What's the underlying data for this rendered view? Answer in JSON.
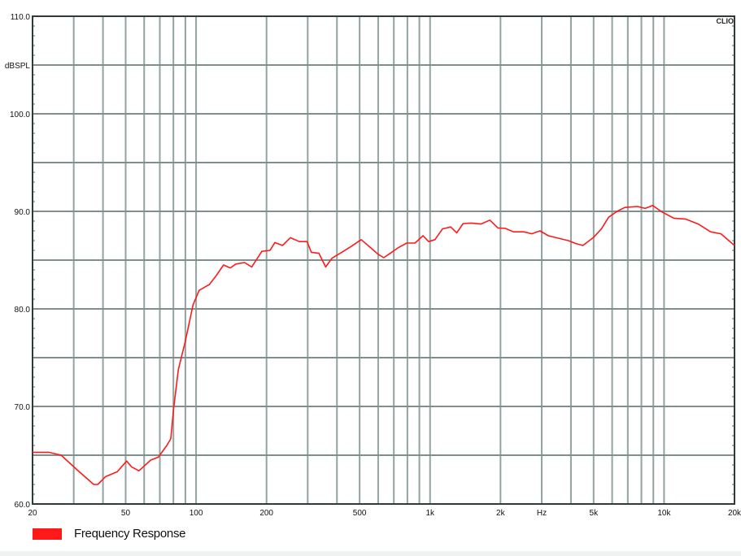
{
  "chart_data": {
    "type": "line",
    "title": "",
    "xlabel": "Hz",
    "ylabel": "dBSPL",
    "x_scale": "log",
    "xlim": [
      20,
      20000
    ],
    "ylim": [
      60,
      110
    ],
    "grid": true,
    "logo": "CLIO",
    "x_tick_labels": [
      {
        "value": 20,
        "label": "20"
      },
      {
        "value": 50,
        "label": "50"
      },
      {
        "value": 100,
        "label": "100"
      },
      {
        "value": 200,
        "label": "200"
      },
      {
        "value": 500,
        "label": "500"
      },
      {
        "value": 1000,
        "label": "1k"
      },
      {
        "value": 2000,
        "label": "2k"
      },
      {
        "value": 3000,
        "label": "Hz"
      },
      {
        "value": 5000,
        "label": "5k"
      },
      {
        "value": 10000,
        "label": "10k"
      },
      {
        "value": 20000,
        "label": "20k"
      }
    ],
    "y_tick_labels": [
      {
        "value": 110,
        "label": "110.0"
      },
      {
        "value": 105,
        "label": "dBSPL"
      },
      {
        "value": 100,
        "label": "100.0"
      },
      {
        "value": 90,
        "label": "90.0"
      },
      {
        "value": 80,
        "label": "80.0"
      },
      {
        "value": 70,
        "label": "70.0"
      },
      {
        "value": 60,
        "label": "60.0"
      }
    ],
    "legend": {
      "position": "bottom-left"
    },
    "series": [
      {
        "name": "Frequency Response",
        "color": "#ff1a1a",
        "x": [
          20,
          23.5,
          26.5,
          31,
          36.5,
          38,
          41,
          46,
          50.5,
          53,
          57,
          64,
          69,
          75,
          78,
          80,
          84,
          90,
          97,
          103,
          114,
          121,
          131,
          140,
          148,
          161,
          173,
          191,
          207,
          217,
          234,
          253,
          276,
          298,
          311,
          335,
          358,
          381,
          419,
          460,
          508,
          558,
          600,
          634,
          676,
          734,
          795,
          862,
          933,
          986,
          1050,
          1130,
          1225,
          1300,
          1385,
          1500,
          1650,
          1800,
          1950,
          2100,
          2270,
          2520,
          2720,
          2950,
          3200,
          3600,
          3900,
          4200,
          4500,
          4980,
          5400,
          5800,
          6300,
          6800,
          7700,
          8300,
          8950,
          9700,
          11000,
          12400,
          14000,
          15800,
          17500,
          20000
        ],
        "y": [
          65.3,
          65.3,
          65.0,
          63.5,
          62.0,
          62.0,
          62.8,
          63.3,
          64.4,
          63.8,
          63.4,
          64.5,
          64.8,
          66.0,
          66.7,
          69.6,
          73.8,
          76.7,
          80.4,
          81.9,
          82.5,
          83.3,
          84.5,
          84.2,
          84.6,
          84.75,
          84.3,
          85.9,
          86.0,
          86.8,
          86.5,
          87.3,
          86.9,
          86.9,
          85.8,
          85.7,
          84.3,
          85.2,
          85.8,
          86.4,
          87.1,
          86.25,
          85.6,
          85.25,
          85.7,
          86.3,
          86.75,
          86.75,
          87.5,
          86.9,
          87.1,
          88.2,
          88.4,
          87.8,
          88.75,
          88.8,
          88.7,
          89.1,
          88.3,
          88.25,
          87.9,
          87.9,
          87.7,
          88.0,
          87.5,
          87.2,
          87.0,
          86.7,
          86.5,
          87.3,
          88.2,
          89.4,
          90.0,
          90.4,
          90.5,
          90.3,
          90.6,
          90.0,
          89.3,
          89.2,
          88.7,
          87.9,
          87.7,
          86.5
        ]
      }
    ]
  }
}
